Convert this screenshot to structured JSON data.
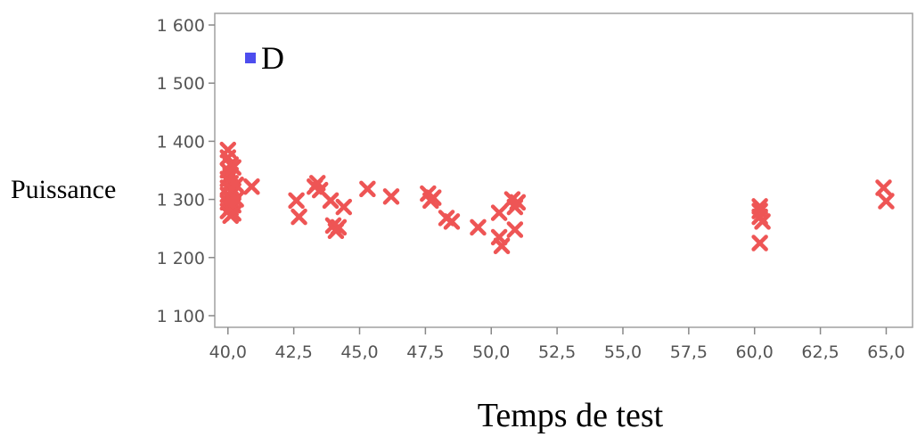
{
  "chart_data": {
    "type": "scatter",
    "xlabel": "Temps de test",
    "ylabel": "Puissance",
    "xlim": [
      39.5,
      66.0
    ],
    "ylim": [
      1080,
      1620
    ],
    "x_ticks": [
      40.0,
      42.5,
      45.0,
      47.5,
      50.0,
      52.5,
      55.0,
      57.5,
      60.0,
      62.5,
      65.0
    ],
    "x_tick_labels": [
      "40,0",
      "42,5",
      "45,0",
      "47,5",
      "50,0",
      "52,5",
      "55,0",
      "57,5",
      "60,0",
      "62,5",
      "65,0"
    ],
    "y_ticks": [
      1100,
      1200,
      1300,
      1400,
      1500,
      1600
    ],
    "y_tick_labels": [
      "1 100",
      "1 200",
      "1 300",
      "1 400",
      "1 500",
      "1 600"
    ],
    "grid": false,
    "legend": {
      "placement": "top-left"
    },
    "series": [
      {
        "name": "D",
        "marker": "x",
        "color": "#ee5555",
        "legend_color": "#4d4dee",
        "points": [
          [
            40.0,
            1385
          ],
          [
            40.0,
            1372
          ],
          [
            40.1,
            1360
          ],
          [
            40.0,
            1350
          ],
          [
            40.1,
            1342
          ],
          [
            40.0,
            1335
          ],
          [
            40.1,
            1328
          ],
          [
            40.0,
            1320
          ],
          [
            40.2,
            1315
          ],
          [
            40.0,
            1308
          ],
          [
            40.1,
            1300
          ],
          [
            40.0,
            1295
          ],
          [
            40.2,
            1290
          ],
          [
            40.1,
            1285
          ],
          [
            40.0,
            1280
          ],
          [
            40.2,
            1276
          ],
          [
            40.1,
            1272
          ],
          [
            40.3,
            1300
          ],
          [
            40.3,
            1325
          ],
          [
            40.2,
            1355
          ],
          [
            40.9,
            1322
          ],
          [
            42.6,
            1298
          ],
          [
            42.7,
            1270
          ],
          [
            43.3,
            1322
          ],
          [
            43.5,
            1316
          ],
          [
            43.4,
            1328
          ],
          [
            43.9,
            1298
          ],
          [
            44.0,
            1255
          ],
          [
            44.1,
            1246
          ],
          [
            44.2,
            1252
          ],
          [
            44.4,
            1287
          ],
          [
            45.3,
            1318
          ],
          [
            46.2,
            1305
          ],
          [
            47.6,
            1310
          ],
          [
            47.7,
            1298
          ],
          [
            47.8,
            1303
          ],
          [
            48.3,
            1268
          ],
          [
            48.5,
            1262
          ],
          [
            49.5,
            1252
          ],
          [
            50.3,
            1277
          ],
          [
            50.3,
            1235
          ],
          [
            50.4,
            1220
          ],
          [
            50.8,
            1300
          ],
          [
            50.9,
            1287
          ],
          [
            51.0,
            1295
          ],
          [
            50.9,
            1248
          ],
          [
            60.2,
            1288
          ],
          [
            60.2,
            1270
          ],
          [
            60.3,
            1262
          ],
          [
            60.2,
            1280
          ],
          [
            60.2,
            1225
          ],
          [
            64.9,
            1320
          ],
          [
            65.0,
            1297
          ]
        ]
      }
    ]
  }
}
